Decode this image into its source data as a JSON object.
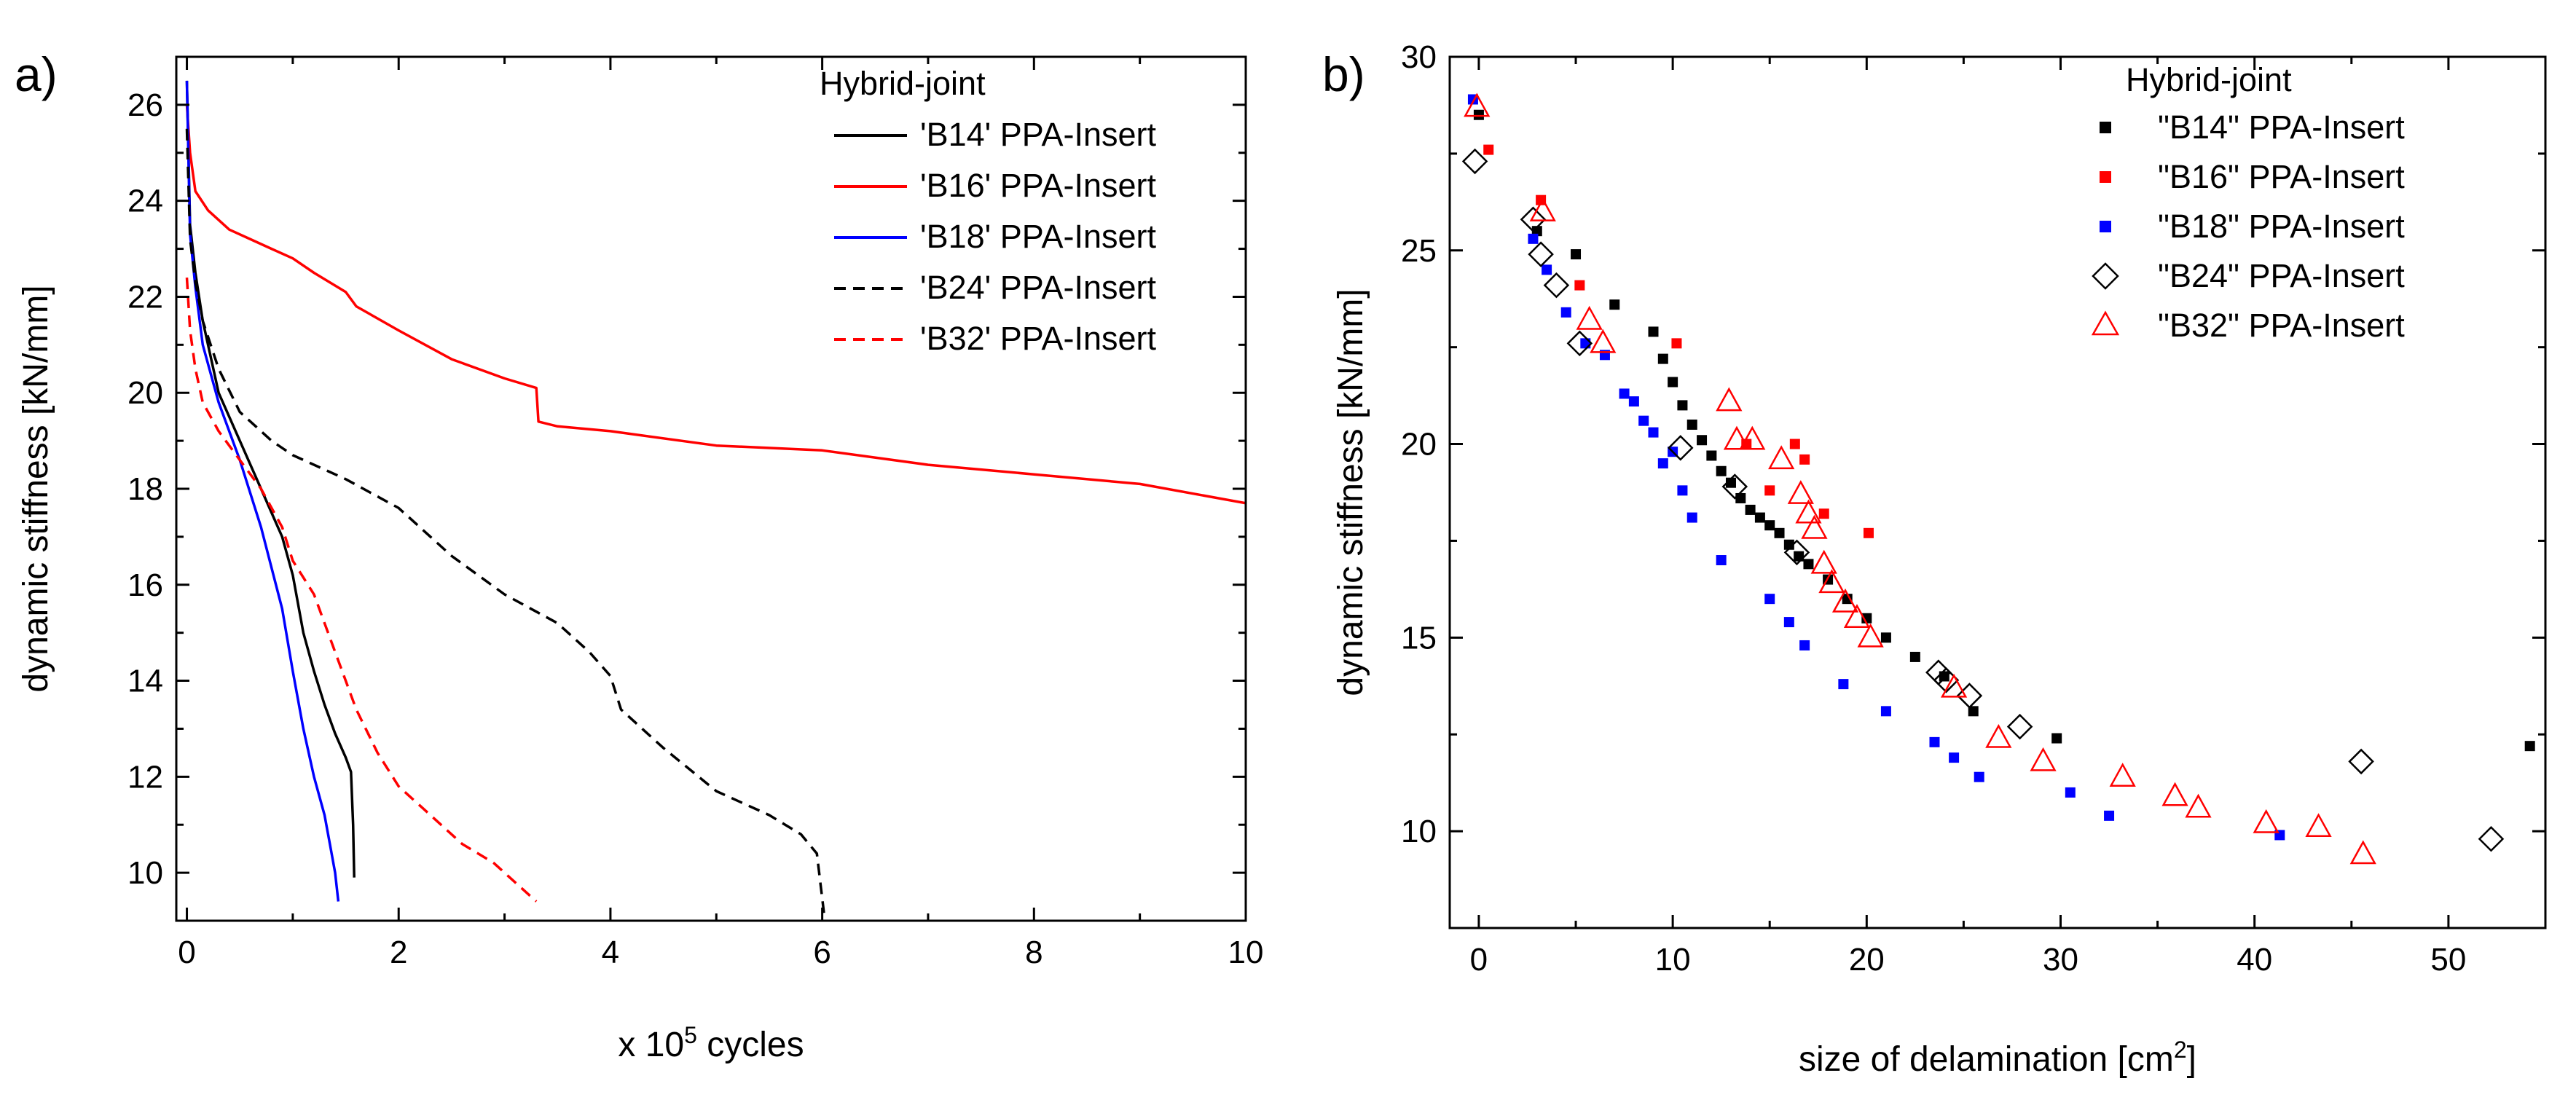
{
  "chart_data": [
    {
      "panel_label": "a)",
      "type": "line",
      "xlabel_prefix": "x 10",
      "xlabel_exponent": "5",
      "xlabel_suffix": " cycles",
      "ylabel": "dynamic stiffness [kN/mm]",
      "xlim": [
        -0.1,
        10
      ],
      "ylim": [
        9,
        27
      ],
      "xticks": [
        "0",
        "2",
        "4",
        "6",
        "8",
        "10"
      ],
      "yticks": [
        "10",
        "12",
        "14",
        "16",
        "18",
        "20",
        "22",
        "24",
        "26"
      ],
      "legend_title": "Hybrid-joint",
      "legend_position": "top-right",
      "series": [
        {
          "name": "'B14' PPA-Insert",
          "color": "#000000",
          "style": "solid",
          "x": [
            0,
            0.03,
            0.08,
            0.15,
            0.3,
            0.5,
            0.7,
            0.9,
            1.0,
            1.1,
            1.2,
            1.3,
            1.4,
            1.5,
            1.55,
            1.57,
            1.58
          ],
          "y": [
            26.5,
            23.5,
            22.5,
            21.5,
            20.0,
            19.0,
            18.0,
            17.0,
            16.2,
            15.0,
            14.2,
            13.5,
            12.9,
            12.4,
            12.1,
            11.0,
            9.9
          ]
        },
        {
          "name": "'B16' PPA-Insert",
          "color": "#ff0000",
          "style": "solid",
          "x": [
            0,
            0.03,
            0.08,
            0.2,
            0.4,
            0.6,
            0.8,
            1.0,
            1.2,
            1.5,
            1.6,
            2.0,
            2.5,
            3.0,
            3.3,
            3.32,
            3.5,
            4.0,
            5.0,
            6.0,
            7.0,
            8.0,
            9.0,
            10.0
          ],
          "y": [
            26.0,
            25.0,
            24.2,
            23.8,
            23.4,
            23.2,
            23.0,
            22.8,
            22.5,
            22.1,
            21.8,
            21.3,
            20.7,
            20.3,
            20.1,
            19.4,
            19.3,
            19.2,
            18.9,
            18.8,
            18.5,
            18.3,
            18.1,
            17.7
          ]
        },
        {
          "name": "'B18' PPA-Insert",
          "color": "#0000ff",
          "style": "solid",
          "x": [
            0,
            0.03,
            0.08,
            0.15,
            0.3,
            0.5,
            0.7,
            0.9,
            1.0,
            1.1,
            1.2,
            1.3,
            1.35,
            1.4,
            1.43
          ],
          "y": [
            26.5,
            23.3,
            22.2,
            21.0,
            19.8,
            18.6,
            17.2,
            15.5,
            14.2,
            13.0,
            12.0,
            11.2,
            10.6,
            10.0,
            9.4
          ]
        },
        {
          "name": "'B24' PPA-Insert",
          "color": "#000000",
          "style": "dashed",
          "x": [
            0,
            0.03,
            0.08,
            0.15,
            0.3,
            0.5,
            0.8,
            1.0,
            1.5,
            2.0,
            2.5,
            3.0,
            3.5,
            3.8,
            4.0,
            4.1,
            4.5,
            5.0,
            5.5,
            5.8,
            5.95,
            6.02
          ],
          "y": [
            25.5,
            23.2,
            22.3,
            21.5,
            20.5,
            19.6,
            19.0,
            18.7,
            18.2,
            17.6,
            16.6,
            15.8,
            15.2,
            14.6,
            14.1,
            13.4,
            12.6,
            11.7,
            11.2,
            10.8,
            10.4,
            9.1
          ]
        },
        {
          "name": "'B32' PPA-Insert",
          "color": "#ff0000",
          "style": "dashed",
          "x": [
            0,
            0.03,
            0.08,
            0.15,
            0.3,
            0.5,
            0.7,
            0.9,
            1.0,
            1.2,
            1.4,
            1.6,
            1.8,
            2.0,
            2.3,
            2.6,
            2.9,
            3.1,
            3.3
          ],
          "y": [
            22.4,
            21.3,
            20.5,
            19.8,
            19.2,
            18.6,
            18.0,
            17.2,
            16.5,
            15.8,
            14.6,
            13.4,
            12.5,
            11.8,
            11.2,
            10.6,
            10.2,
            9.8,
            9.4
          ]
        }
      ]
    },
    {
      "panel_label": "b)",
      "type": "scatter",
      "xlabel_prefix": "size of delamination [cm",
      "xlabel_exponent": "2",
      "xlabel_suffix": "]",
      "ylabel": "dynamic stiffness [kN/mm]",
      "xlim": [
        -1.5,
        55
      ],
      "ylim": [
        7.5,
        30
      ],
      "xticks": [
        "0",
        "10",
        "20",
        "30",
        "40",
        "50"
      ],
      "yticks": [
        "10",
        "15",
        "20",
        "25",
        "30"
      ],
      "legend_title": "Hybrid-joint",
      "legend_position": "top-right",
      "series": [
        {
          "name": "\"B14\" PPA-Insert",
          "color": "#000000",
          "marker": "square-filled",
          "x": [
            0,
            3.0,
            5.0,
            7.0,
            9.0,
            9.5,
            10.0,
            10.5,
            11.0,
            11.5,
            12.0,
            12.5,
            13.0,
            13.5,
            14.0,
            14.5,
            15.0,
            15.5,
            16.0,
            16.5,
            17.0,
            18.0,
            19.0,
            20.0,
            21.0,
            22.5,
            24.0,
            25.5,
            29.8,
            54.2
          ],
          "y": [
            28.5,
            25.5,
            24.9,
            23.6,
            22.9,
            22.2,
            21.6,
            21.0,
            20.5,
            20.1,
            19.7,
            19.3,
            19.0,
            18.6,
            18.3,
            18.1,
            17.9,
            17.7,
            17.4,
            17.1,
            16.9,
            16.5,
            16.0,
            15.5,
            15.0,
            14.5,
            14.0,
            13.1,
            12.4,
            12.2
          ]
        },
        {
          "name": "\"B16\" PPA-Insert",
          "color": "#ff0000",
          "marker": "square-filled",
          "x": [
            0.5,
            3.2,
            5.2,
            10.2,
            13.8,
            15.0,
            16.3,
            16.8,
            17.8,
            20.1
          ],
          "y": [
            27.6,
            26.3,
            24.1,
            22.6,
            20.0,
            18.8,
            20.0,
            19.6,
            18.2,
            17.7
          ]
        },
        {
          "name": "\"B18\" PPA-Insert",
          "color": "#0000ff",
          "marker": "square-filled",
          "x": [
            -0.3,
            2.8,
            3.5,
            4.5,
            5.5,
            6.5,
            7.5,
            8.0,
            8.5,
            9.0,
            9.5,
            10.0,
            10.5,
            11.0,
            12.5,
            15.0,
            16.0,
            16.8,
            18.8,
            21.0,
            23.5,
            24.5,
            25.8,
            30.5,
            32.5,
            41.3
          ],
          "y": [
            28.9,
            25.3,
            24.5,
            23.4,
            22.6,
            22.3,
            21.3,
            21.1,
            20.6,
            20.3,
            19.5,
            19.8,
            18.8,
            18.1,
            17.0,
            16.0,
            15.4,
            14.8,
            13.8,
            13.1,
            12.3,
            11.9,
            11.4,
            11.0,
            10.4,
            9.9
          ]
        },
        {
          "name": "\"B24\" PPA-Insert",
          "color": "#000000",
          "marker": "diamond-open",
          "x": [
            -0.2,
            2.8,
            3.2,
            4.0,
            5.2,
            10.4,
            13.2,
            16.4,
            23.7,
            24.1,
            25.3,
            27.9,
            45.5,
            52.2
          ],
          "y": [
            27.3,
            25.8,
            24.9,
            24.1,
            22.6,
            19.9,
            18.9,
            17.2,
            14.1,
            13.9,
            13.5,
            12.7,
            11.8,
            9.8
          ]
        },
        {
          "name": "\"B32\" PPA-Insert",
          "color": "#ff0000",
          "marker": "triangle-open",
          "x": [
            -0.1,
            3.3,
            5.7,
            6.4,
            12.9,
            13.3,
            14.1,
            15.6,
            16.6,
            17.0,
            17.3,
            17.8,
            18.2,
            18.9,
            19.5,
            20.2,
            24.5,
            26.8,
            29.1,
            33.2,
            35.9,
            37.1,
            40.6,
            43.3,
            45.6
          ],
          "y": [
            28.7,
            26.0,
            23.2,
            22.6,
            21.1,
            20.1,
            20.1,
            19.6,
            18.7,
            18.2,
            17.8,
            16.9,
            16.4,
            15.9,
            15.5,
            15.0,
            13.7,
            12.4,
            11.8,
            11.4,
            10.9,
            10.6,
            10.2,
            10.1,
            9.4
          ]
        }
      ]
    }
  ]
}
